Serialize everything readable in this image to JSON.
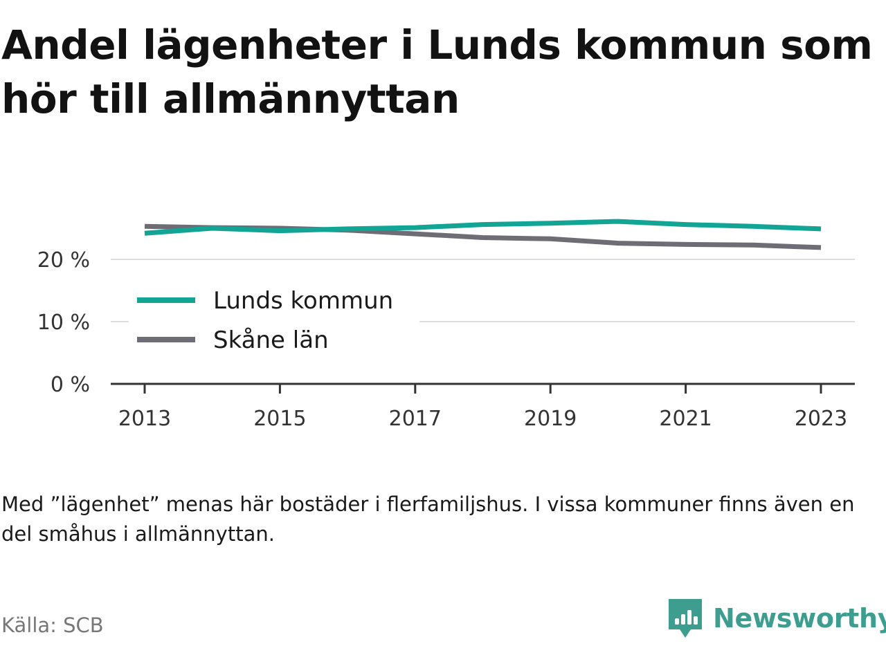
{
  "title": "Andel lägenheter i Lunds kommun som hör till allmännyttan",
  "note": "Med ”lägenhet” menas här bostäder i flerfamiljshus. I vissa kommuner finns även en del småhus i allmännyttan.",
  "source": "Källa: SCB",
  "brand": {
    "name": "Newsworthy",
    "icon": "newsworthy-logo-icon",
    "color": "#3d9e90"
  },
  "chart_data": {
    "type": "line",
    "x": [
      2013,
      2014,
      2015,
      2016,
      2017,
      2018,
      2019,
      2020,
      2021,
      2022,
      2023
    ],
    "xticks": [
      2013,
      2015,
      2017,
      2019,
      2021,
      2023
    ],
    "xtick_labels": [
      "2013",
      "2015",
      "2017",
      "2019",
      "2021",
      "2023"
    ],
    "yticks": [
      0,
      10,
      20
    ],
    "ytick_labels": [
      "0 %",
      "10 %",
      "20 %"
    ],
    "ylim": [
      0,
      30
    ],
    "xlim": [
      2012.5,
      2023.5
    ],
    "grid": true,
    "legend_position": "left, inside plot",
    "series": [
      {
        "name": "Lunds kommun",
        "color": "#12a596",
        "values": [
          24.2,
          25.0,
          24.6,
          24.9,
          25.1,
          25.6,
          25.8,
          26.1,
          25.6,
          25.3,
          24.9
        ]
      },
      {
        "name": "Skåne län",
        "color": "#6e6d75",
        "values": [
          25.3,
          25.1,
          25.0,
          24.7,
          24.1,
          23.5,
          23.3,
          22.6,
          22.4,
          22.3,
          21.9
        ]
      }
    ]
  }
}
